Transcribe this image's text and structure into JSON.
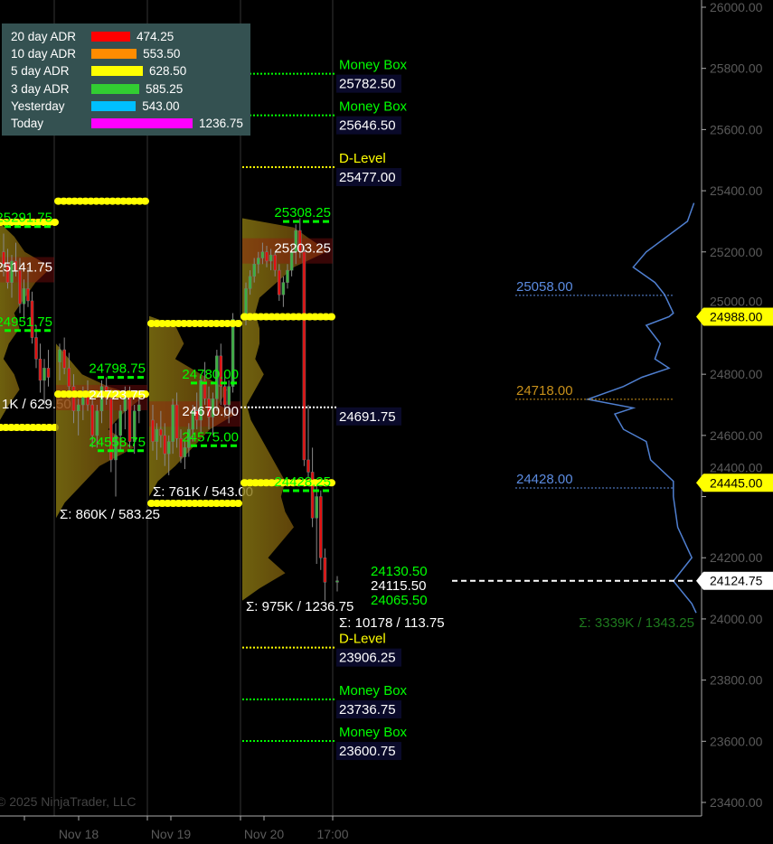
{
  "adr_panel": {
    "rows": [
      {
        "label": "20 day ADR",
        "value": "474.25",
        "color": "#ff0000"
      },
      {
        "label": "10 day ADR",
        "value": "553.50",
        "color": "#ff8c00"
      },
      {
        "label": "5 day ADR",
        "value": "628.50",
        "color": "#ffff00"
      },
      {
        "label": "3 day ADR",
        "value": "585.25",
        "color": "#32cd32"
      },
      {
        "label": "Yesterday",
        "value": "543.00",
        "color": "#00bfff"
      },
      {
        "label": "Today",
        "value": "1236.75",
        "color": "#ff00ff"
      }
    ]
  },
  "copyright": "© 2025 NinjaTrader, LLC",
  "chart_data": {
    "type": "candlestick",
    "y_axis": {
      "min": 23400,
      "max": 26000,
      "step": 200,
      "side": "right",
      "tick_labels": [
        "26000.00",
        "25800.00",
        "25600.00",
        "25400.00",
        "25200.00",
        "25000.00",
        "24800.00",
        "24600.00",
        "24400.00",
        "24200.00",
        "24000.00",
        "23800.00",
        "23600.00",
        "23400.00"
      ]
    },
    "x_axis": {
      "tick_labels": [
        "Nov 18",
        "Nov 19",
        "Nov 20",
        "17:00"
      ]
    },
    "grid": "vertical session separators",
    "sessions": [
      {
        "candles": [
          [
            25200,
            25260,
            25120,
            25160
          ],
          [
            25160,
            25210,
            25080,
            25100
          ],
          [
            25100,
            25190,
            25050,
            25170
          ],
          [
            25170,
            25230,
            25120,
            25140
          ],
          [
            25140,
            25180,
            25000,
            25030
          ],
          [
            25030,
            25110,
            24980,
            25080
          ],
          [
            25080,
            25150,
            25020,
            25040
          ],
          [
            25040,
            25070,
            24900,
            24920
          ],
          [
            24920,
            24960,
            24820,
            24850
          ],
          [
            24850,
            24900,
            24740,
            24780
          ],
          [
            24780,
            24850,
            24700,
            24820
          ],
          [
            24820,
            24880,
            24760,
            24790
          ]
        ],
        "profile": [
          [
            25300,
            0
          ],
          [
            25250,
            0.3
          ],
          [
            25200,
            0.5
          ],
          [
            25150,
            1.0
          ],
          [
            25100,
            0.7
          ],
          [
            25050,
            0.5
          ],
          [
            25000,
            0.3
          ],
          [
            24950,
            0.4
          ],
          [
            24900,
            0.2
          ],
          [
            24850,
            0.1
          ],
          [
            24800,
            0.3
          ],
          [
            24750,
            0.4
          ],
          [
            24700,
            0.2
          ],
          [
            24640,
            0
          ]
        ],
        "vah": "25291.75",
        "val": "24951.75",
        "poc": "25141.75",
        "range_high": 25297,
        "range_low": 24626,
        "summary": "1K / 629.50"
      },
      {
        "candles": [
          [
            24840,
            24900,
            24780,
            24880
          ],
          [
            24880,
            24920,
            24800,
            24820
          ],
          [
            24820,
            24870,
            24720,
            24760
          ],
          [
            24760,
            24800,
            24640,
            24680
          ],
          [
            24680,
            24720,
            24600,
            24700
          ],
          [
            24700,
            24760,
            24650,
            24740
          ],
          [
            24740,
            24780,
            24680,
            24700
          ],
          [
            24700,
            24730,
            24560,
            24600
          ],
          [
            24600,
            24700,
            24560,
            24680
          ],
          [
            24680,
            24780,
            24640,
            24760
          ],
          [
            24760,
            24790,
            24700,
            24720
          ],
          [
            24720,
            24750,
            24480,
            24520
          ],
          [
            24520,
            24640,
            24400,
            24600
          ],
          [
            24600,
            24700,
            24550,
            24680
          ],
          [
            24680,
            24760,
            24620,
            24740
          ],
          [
            24740,
            24760,
            24560,
            24580
          ],
          [
            24580,
            24700,
            24540,
            24680
          ],
          [
            24680,
            24740,
            24640,
            24700
          ]
        ],
        "profile": [
          [
            24900,
            0
          ],
          [
            24850,
            0.15
          ],
          [
            24800,
            0.3
          ],
          [
            24760,
            0.6
          ],
          [
            24724,
            1.0
          ],
          [
            24680,
            0.8
          ],
          [
            24620,
            0.6
          ],
          [
            24560,
            0.9
          ],
          [
            24500,
            0.5
          ],
          [
            24440,
            0.3
          ],
          [
            24380,
            0.1
          ],
          [
            24330,
            0
          ]
        ],
        "vah": "24798.75",
        "val": "24558.75",
        "poc": "24723.75",
        "range_high": 25366,
        "range_low": 24735,
        "summary": "Σ: 860K / 583.25"
      },
      {
        "candles": [
          [
            24650,
            24700,
            24550,
            24580
          ],
          [
            24580,
            24640,
            24520,
            24620
          ],
          [
            24620,
            24680,
            24560,
            24600
          ],
          [
            24600,
            24640,
            24500,
            24540
          ],
          [
            24540,
            24600,
            24470,
            24580
          ],
          [
            24580,
            24720,
            24540,
            24700
          ],
          [
            24700,
            24740,
            24560,
            24590
          ],
          [
            24590,
            24620,
            24510,
            24530
          ],
          [
            24530,
            24580,
            24490,
            24560
          ],
          [
            24560,
            24640,
            24530,
            24620
          ],
          [
            24620,
            24700,
            24580,
            24680
          ],
          [
            24680,
            24740,
            24620,
            24650
          ],
          [
            24650,
            24800,
            24610,
            24780
          ],
          [
            24780,
            24840,
            24700,
            24720
          ],
          [
            24720,
            24760,
            24620,
            24660
          ],
          [
            24660,
            24740,
            24600,
            24720
          ],
          [
            24720,
            24880,
            24680,
            24860
          ],
          [
            24860,
            24900,
            24700,
            24760
          ],
          [
            24760,
            24800,
            24660,
            24700
          ],
          [
            24700,
            24780,
            24640,
            24760
          ],
          [
            24760,
            25000,
            24740,
            24980
          ]
        ],
        "profile": [
          [
            24990,
            0
          ],
          [
            24960,
            0.3
          ],
          [
            24900,
            0.4
          ],
          [
            24850,
            0.3
          ],
          [
            24800,
            0.6
          ],
          [
            24750,
            0.9
          ],
          [
            24700,
            0.8
          ],
          [
            24670,
            1.0
          ],
          [
            24620,
            0.7
          ],
          [
            24560,
            0.5
          ],
          [
            24500,
            0.3
          ],
          [
            24450,
            0.1
          ],
          [
            24400,
            0
          ]
        ],
        "vah": "24780.00",
        "val": "24575.00",
        "poc": "24670.00",
        "range_high": 24966,
        "range_low": 24378,
        "summary": "Σ: 761K / 543.00"
      },
      {
        "candles": [
          [
            24980,
            25100,
            24960,
            25080
          ],
          [
            25080,
            25140,
            25060,
            25120
          ],
          [
            25120,
            25180,
            25100,
            25160
          ],
          [
            25160,
            25200,
            25130,
            25180
          ],
          [
            25180,
            25230,
            25160,
            25200
          ],
          [
            25200,
            25220,
            25150,
            25170
          ],
          [
            25170,
            25210,
            25140,
            25190
          ],
          [
            25190,
            25200,
            25120,
            25140
          ],
          [
            25140,
            25160,
            25040,
            25060
          ],
          [
            25060,
            25120,
            25020,
            25100
          ],
          [
            25100,
            25160,
            25080,
            25140
          ],
          [
            25140,
            25220,
            25120,
            25200
          ],
          [
            25200,
            25290,
            25160,
            25270
          ],
          [
            25270,
            25310,
            25180,
            25200
          ],
          [
            25200,
            25220,
            24500,
            24520
          ],
          [
            24520,
            24700,
            24460,
            24480
          ],
          [
            24480,
            24560,
            24300,
            24330
          ],
          [
            24330,
            24440,
            24180,
            24400
          ],
          [
            24400,
            24420,
            24160,
            24200
          ],
          [
            24200,
            24230,
            24060,
            24120
          ]
        ],
        "profile": [
          [
            25310,
            0
          ],
          [
            25280,
            0.6
          ],
          [
            25240,
            0.8
          ],
          [
            25203,
            1.0
          ],
          [
            25150,
            0.6
          ],
          [
            25100,
            0.4
          ],
          [
            25050,
            0.2
          ],
          [
            25000,
            0.15
          ],
          [
            24950,
            0.2
          ],
          [
            24900,
            0.2
          ],
          [
            24850,
            0.15
          ],
          [
            24800,
            0.25
          ],
          [
            24750,
            0.15
          ],
          [
            24700,
            0.05
          ],
          [
            24650,
            0.1
          ],
          [
            24600,
            0.2
          ],
          [
            24550,
            0.3
          ],
          [
            24500,
            0.4
          ],
          [
            24450,
            0.5
          ],
          [
            24400,
            0.45
          ],
          [
            24350,
            0.5
          ],
          [
            24300,
            0.6
          ],
          [
            24250,
            0.45
          ],
          [
            24200,
            0.3
          ],
          [
            24150,
            0.5
          ],
          [
            24100,
            0.2
          ],
          [
            24060,
            0
          ]
        ],
        "vah": "25308.25",
        "val": "24428.25",
        "poc": "25203.25",
        "range_high": 24988,
        "range_low": 24445,
        "summary": "Σ: 975K / 1236.75"
      },
      {
        "candles": [
          [
            24120,
            24140,
            24090,
            24124.75
          ]
        ],
        "profile": [],
        "vah": "24130.50",
        "val": "24065.50",
        "poc": "24115.50",
        "summary": "Σ: 10178 / 113.75"
      }
    ],
    "midpoint_level": "24691.75",
    "levels": [
      {
        "name": "Money Box",
        "value": "25782.50",
        "color": "#00ff00"
      },
      {
        "name": "Money Box",
        "value": "25646.50",
        "color": "#00ff00"
      },
      {
        "name": "D-Level",
        "value": "25477.00",
        "color": "#ffff00"
      },
      {
        "name": "D-Level",
        "value": "23906.25",
        "color": "#ffff00"
      },
      {
        "name": "Money Box",
        "value": "23736.75",
        "color": "#00ff00"
      },
      {
        "name": "Money Box",
        "value": "23600.75",
        "color": "#00ff00"
      }
    ],
    "composite_profile": {
      "color": "#4f7fd0",
      "points": [
        [
          25360,
          0.02
        ],
        [
          25300,
          0.08
        ],
        [
          25200,
          0.46
        ],
        [
          25150,
          0.58
        ],
        [
          25100,
          0.38
        ],
        [
          25060,
          0.29
        ],
        [
          25000,
          0.21
        ],
        [
          24988,
          0.25
        ],
        [
          24960,
          0.46
        ],
        [
          24900,
          0.33
        ],
        [
          24850,
          0.38
        ],
        [
          24820,
          0.25
        ],
        [
          24790,
          0.5
        ],
        [
          24760,
          0.67
        ],
        [
          24718,
          1.0
        ],
        [
          24690,
          0.58
        ],
        [
          24670,
          0.75
        ],
        [
          24620,
          0.67
        ],
        [
          24580,
          0.46
        ],
        [
          24520,
          0.42
        ],
        [
          24450,
          0.21
        ],
        [
          24400,
          0.21
        ],
        [
          24300,
          0.17
        ],
        [
          24200,
          0.04
        ],
        [
          24124,
          0.21
        ],
        [
          24050,
          0.04
        ],
        [
          24020,
          0
        ]
      ],
      "labels": [
        {
          "value": "25058.00",
          "color": "#5b8be0"
        },
        {
          "value": "24718.00",
          "color": "#c8901a"
        },
        {
          "value": "24428.00",
          "color": "#5b8be0"
        }
      ],
      "summary": "Σ: 3339K / 1343.25"
    },
    "price_markers": [
      {
        "value": "24988.00",
        "color": "#ffff00"
      },
      {
        "value": "24445.00",
        "color": "#ffff00"
      },
      {
        "value": "24124.75",
        "color": "#ffffff",
        "current": true
      }
    ]
  }
}
